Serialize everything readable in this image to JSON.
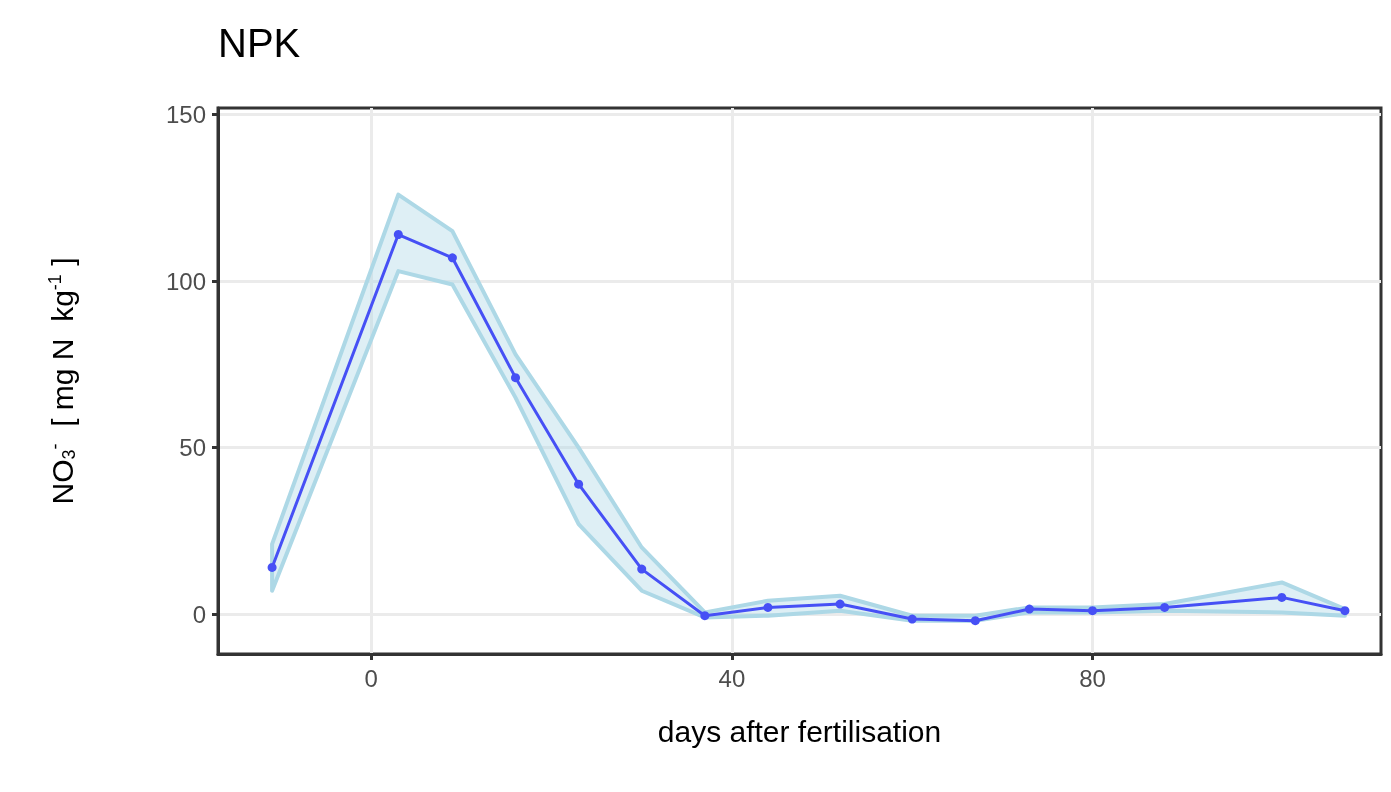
{
  "chart_data": {
    "type": "line",
    "title": "NPK",
    "xlabel": "days after fertilisation",
    "ylabel": "NO$_{3}$$^{-}$  [ mg N  kg$^{-1}$ ]",
    "x": [
      -11,
      3,
      9,
      16,
      23,
      30,
      37,
      44,
      52,
      60,
      67,
      73,
      80,
      88,
      101,
      108
    ],
    "series": [
      {
        "color": "#4650f5",
        "values": [
          14,
          114,
          107,
          71,
          39,
          13.5,
          -0.5,
          2,
          3,
          -1.5,
          -2,
          1.5,
          1,
          2,
          5,
          1
        ],
        "lower": [
          7,
          103,
          99,
          65,
          27,
          7,
          -1,
          -0.5,
          1,
          -2,
          -2,
          0.5,
          0.5,
          1,
          0.5,
          -0.5
        ],
        "upper": [
          21,
          126,
          115,
          78,
          50,
          20,
          0.5,
          4,
          5.5,
          -0.5,
          -0.5,
          2,
          2,
          3,
          9.5,
          1.5
        ]
      }
    ],
    "xlim": [
      -17,
      112
    ],
    "xticks": [
      0,
      40,
      80
    ],
    "ylim": [
      -12,
      152
    ],
    "yticks": [
      0,
      50,
      100,
      150
    ],
    "grid": true,
    "marker": "circle",
    "line_style": "solid"
  }
}
